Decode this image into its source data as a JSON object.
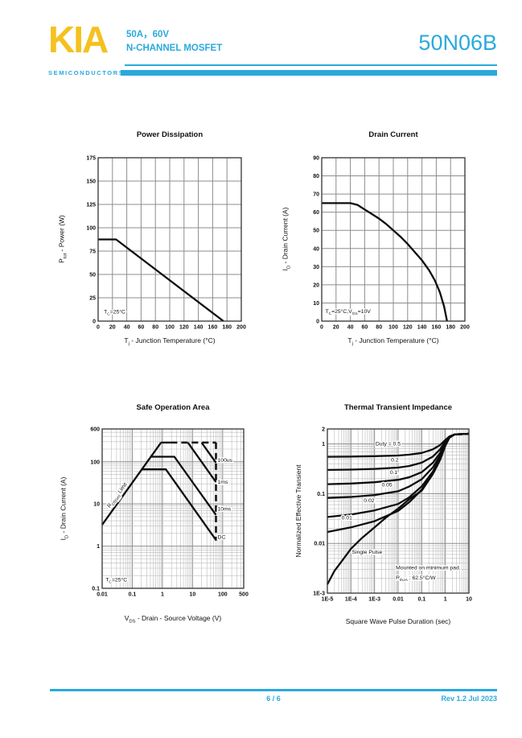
{
  "header": {
    "logo_text": "KIA",
    "logo_sub": "SEMICONDUCTORS",
    "subtitle_line1": "50A，60V",
    "subtitle_line2": "N-CHANNEL MOSFET",
    "part_number": "50N06B"
  },
  "footer": {
    "page": "6 / 6",
    "revision": "Rev 1.2 Jul 2023"
  },
  "colors": {
    "accent": "#2AA9DC",
    "logo_yellow": "#F5C11E",
    "curve": "#0d0d0d"
  },
  "chart_data": [
    {
      "type": "line",
      "title": "Power Dissipation",
      "xlabel": "T~j~ - Junction Temperature (°C)",
      "ylabel": "P~tot~ - Power (W)",
      "xscale": "linear",
      "yscale": "linear",
      "xlim": [
        0,
        200
      ],
      "ylim": [
        0,
        175
      ],
      "xticks": [
        0,
        20,
        40,
        60,
        80,
        100,
        120,
        140,
        160,
        180,
        200
      ],
      "yticks": [
        0,
        25,
        50,
        75,
        100,
        125,
        150,
        175
      ],
      "series": [
        {
          "name": "power-derating",
          "points": [
            [
              0,
              87.5
            ],
            [
              25,
              87.5
            ],
            [
              175,
              0
            ]
          ]
        }
      ],
      "labels": [],
      "annotations": [
        {
          "text": "T~C~=25°C",
          "x": 8,
          "y": 8
        }
      ]
    },
    {
      "type": "line",
      "title": "Drain Current",
      "xlabel": "T~j~ - Junction Temperature (°C)",
      "ylabel": "I~D~ - Drain Current (A)",
      "xscale": "linear",
      "yscale": "linear",
      "xlim": [
        0,
        200
      ],
      "ylim": [
        0,
        90
      ],
      "xticks": [
        0,
        20,
        40,
        60,
        80,
        100,
        120,
        140,
        160,
        180,
        200
      ],
      "yticks": [
        0,
        10,
        20,
        30,
        40,
        50,
        60,
        70,
        80,
        90
      ],
      "series": [
        {
          "name": "current-derating",
          "points": [
            [
              0,
              65
            ],
            [
              40,
              65
            ],
            [
              50,
              64
            ],
            [
              60,
              61.5
            ],
            [
              70,
              59
            ],
            [
              80,
              56.5
            ],
            [
              90,
              53.5
            ],
            [
              100,
              50
            ],
            [
              110,
              46.5
            ],
            [
              120,
              42.5
            ],
            [
              130,
              38
            ],
            [
              140,
              33.5
            ],
            [
              150,
              28
            ],
            [
              158,
              22.5
            ],
            [
              165,
              16
            ],
            [
              171,
              8
            ],
            [
              175,
              0
            ]
          ]
        }
      ],
      "labels": [],
      "annotations": [
        {
          "text": "T~C~=25°C,V~GS~=10V",
          "x": 5,
          "y": 4.5
        }
      ]
    },
    {
      "type": "line",
      "title": "Safe Operation Area",
      "xlabel": "V~DS~ - Drain - Source Voltage (V)",
      "ylabel": "I~D~ - Drain Current (A)",
      "xscale": "log",
      "yscale": "log",
      "xlim": [
        0.01,
        500
      ],
      "ylim": [
        0.1,
        600
      ],
      "xticks": [
        {
          "v": 0.01,
          "label": "0.01"
        },
        {
          "v": 0.1,
          "label": "0.1"
        },
        {
          "v": 1,
          "label": "1"
        },
        {
          "v": 10,
          "label": "10"
        },
        {
          "v": 100,
          "label": "100"
        },
        {
          "v": 500,
          "label": "500"
        }
      ],
      "yticks": [
        {
          "v": 0.1,
          "label": "0.1"
        },
        {
          "v": 1,
          "label": "1"
        },
        {
          "v": 10,
          "label": "10"
        },
        {
          "v": 100,
          "label": "100"
        },
        {
          "v": 600,
          "label": "600"
        }
      ],
      "series": [
        {
          "name": "rds-on-limit",
          "points": [
            [
              0.01,
              3.2
            ],
            [
              0.9,
              285
            ]
          ]
        },
        {
          "name": "idm-limit-solid",
          "points": [
            [
              0.9,
              285
            ],
            [
              1.9,
              285
            ]
          ]
        },
        {
          "name": "idm-limit-dashed",
          "points": [
            [
              1.9,
              285
            ],
            [
              60,
              285
            ]
          ],
          "dash": true
        },
        {
          "name": "vds-max-dashed",
          "points": [
            [
              60,
              285
            ],
            [
              60,
              1.35
            ]
          ],
          "dash": true
        },
        {
          "name": "pulse-100us",
          "points": [
            [
              20,
              285
            ],
            [
              60,
              95
            ]
          ]
        },
        {
          "name": "pulse-1ms",
          "points": [
            [
              7,
              285
            ],
            [
              60,
              33
            ]
          ]
        },
        {
          "name": "pulse-10ms",
          "points": [
            [
              0.42,
              132
            ],
            [
              2.5,
              132
            ],
            [
              60,
              5.5
            ]
          ]
        },
        {
          "name": "dc",
          "points": [
            [
              0.21,
              66
            ],
            [
              1.3,
              66
            ],
            [
              60,
              1.4
            ]
          ]
        }
      ],
      "labels": [
        {
          "text": "100us",
          "x": 68,
          "y": 100
        },
        {
          "text": "1ms",
          "x": 68,
          "y": 30
        },
        {
          "text": "10ms",
          "x": 68,
          "y": 7
        },
        {
          "text": "DC",
          "x": 68,
          "y": 1.5
        },
        {
          "text": "R~DS(on)~ Limit",
          "x": 0.018,
          "y": 8,
          "rotate": -54
        }
      ],
      "annotations": [
        {
          "text": "T~C~=25°C",
          "x": 0.013,
          "y": 0.145
        }
      ]
    },
    {
      "type": "line",
      "title": "Thermal Transient Impedance",
      "xlabel": "Square Wave Pulse Duration (sec)",
      "ylabel": "Normalized Effective Transient",
      "xscale": "log",
      "yscale": "log",
      "xlim": [
        1e-05,
        10
      ],
      "ylim": [
        0.001,
        2
      ],
      "xticks": [
        {
          "v": 1e-05,
          "label": "1E-5"
        },
        {
          "v": 0.0001,
          "label": "1E-4"
        },
        {
          "v": 0.001,
          "label": "1E-3"
        },
        {
          "v": 0.01,
          "label": "0.01"
        },
        {
          "v": 0.1,
          "label": "0.1"
        },
        {
          "v": 1,
          "label": "1"
        },
        {
          "v": 10,
          "label": "10"
        }
      ],
      "yticks": [
        {
          "v": 0.001,
          "label": "1E-3"
        },
        {
          "v": 0.01,
          "label": "0.01"
        },
        {
          "v": 0.1,
          "label": "0.1"
        },
        {
          "v": 1,
          "label": "1"
        },
        {
          "v": 2,
          "label": "2"
        }
      ],
      "series": [
        {
          "name": "duty-0.5",
          "points": [
            [
              1e-05,
              0.55
            ],
            [
              0.0001,
              0.555
            ],
            [
              0.001,
              0.565
            ],
            [
              0.01,
              0.585
            ],
            [
              0.03,
              0.61
            ],
            [
              0.1,
              0.66
            ],
            [
              0.3,
              0.78
            ],
            [
              0.6,
              0.95
            ],
            [
              1,
              1.2
            ],
            [
              1.5,
              1.42
            ],
            [
              2.5,
              1.55
            ],
            [
              10,
              1.6
            ]
          ]
        },
        {
          "name": "duty-0.2",
          "points": [
            [
              1e-05,
              0.3
            ],
            [
              0.0001,
              0.305
            ],
            [
              0.001,
              0.315
            ],
            [
              0.01,
              0.335
            ],
            [
              0.03,
              0.36
            ],
            [
              0.1,
              0.42
            ],
            [
              0.3,
              0.56
            ],
            [
              0.6,
              0.78
            ],
            [
              1,
              1.12
            ],
            [
              1.5,
              1.4
            ],
            [
              2.5,
              1.55
            ],
            [
              10,
              1.6
            ]
          ]
        },
        {
          "name": "duty-0.1",
          "points": [
            [
              1e-05,
              0.155
            ],
            [
              0.0001,
              0.16
            ],
            [
              0.001,
              0.17
            ],
            [
              0.01,
              0.19
            ],
            [
              0.03,
              0.215
            ],
            [
              0.1,
              0.27
            ],
            [
              0.3,
              0.42
            ],
            [
              0.6,
              0.66
            ],
            [
              1,
              1.06
            ],
            [
              1.5,
              1.38
            ],
            [
              2.5,
              1.55
            ],
            [
              10,
              1.6
            ]
          ]
        },
        {
          "name": "duty-0.05",
          "points": [
            [
              1e-05,
              0.082
            ],
            [
              0.0001,
              0.086
            ],
            [
              0.001,
              0.094
            ],
            [
              0.01,
              0.112
            ],
            [
              0.03,
              0.14
            ],
            [
              0.1,
              0.195
            ],
            [
              0.3,
              0.34
            ],
            [
              0.6,
              0.58
            ],
            [
              1,
              1.0
            ],
            [
              1.5,
              1.36
            ],
            [
              2.5,
              1.55
            ],
            [
              10,
              1.6
            ]
          ]
        },
        {
          "name": "duty-0.02",
          "points": [
            [
              1e-05,
              0.034
            ],
            [
              0.0001,
              0.038
            ],
            [
              0.001,
              0.046
            ],
            [
              0.01,
              0.062
            ],
            [
              0.03,
              0.085
            ],
            [
              0.1,
              0.14
            ],
            [
              0.3,
              0.28
            ],
            [
              0.6,
              0.52
            ],
            [
              1,
              0.96
            ],
            [
              1.5,
              1.35
            ],
            [
              2.5,
              1.55
            ],
            [
              10,
              1.6
            ]
          ]
        },
        {
          "name": "duty-0.01",
          "points": [
            [
              1e-05,
              0.017
            ],
            [
              0.0001,
              0.021
            ],
            [
              0.001,
              0.028
            ],
            [
              0.01,
              0.045
            ],
            [
              0.03,
              0.068
            ],
            [
              0.1,
              0.12
            ],
            [
              0.3,
              0.26
            ],
            [
              0.6,
              0.5
            ],
            [
              1,
              0.94
            ],
            [
              1.5,
              1.34
            ],
            [
              2.5,
              1.55
            ],
            [
              10,
              1.6
            ]
          ]
        },
        {
          "name": "single-pulse",
          "points": [
            [
              1e-05,
              0.0015
            ],
            [
              2e-05,
              0.0028
            ],
            [
              5e-05,
              0.005
            ],
            [
              0.0001,
              0.0078
            ],
            [
              0.0003,
              0.013
            ],
            [
              0.001,
              0.021
            ],
            [
              0.003,
              0.033
            ],
            [
              0.01,
              0.05
            ],
            [
              0.03,
              0.078
            ],
            [
              0.1,
              0.115
            ],
            [
              0.3,
              0.25
            ],
            [
              0.6,
              0.48
            ],
            [
              1,
              0.92
            ],
            [
              1.5,
              1.33
            ],
            [
              2.5,
              1.55
            ],
            [
              10,
              1.6
            ]
          ]
        }
      ],
      "labels": [
        {
          "text": "Duty =  0.5",
          "x": 0.0011,
          "y": 0.93
        },
        {
          "text": "0.2",
          "x": 0.005,
          "y": 0.44
        },
        {
          "text": "0.1",
          "x": 0.0045,
          "y": 0.25
        },
        {
          "text": "0.05",
          "x": 0.002,
          "y": 0.14
        },
        {
          "text": "0.02",
          "x": 0.00035,
          "y": 0.068
        },
        {
          "text": "0.01",
          "x": 4e-05,
          "y": 0.03
        },
        {
          "text": "Single Pulse",
          "x": 0.00011,
          "y": 0.0062
        }
      ],
      "annotations": [
        {
          "text": "Mounted on minimum pad.",
          "x": 0.008,
          "y": 0.003
        },
        {
          "text": "R~thJA~ : 62.5°C/W",
          "x": 0.008,
          "y": 0.0019
        }
      ]
    }
  ]
}
